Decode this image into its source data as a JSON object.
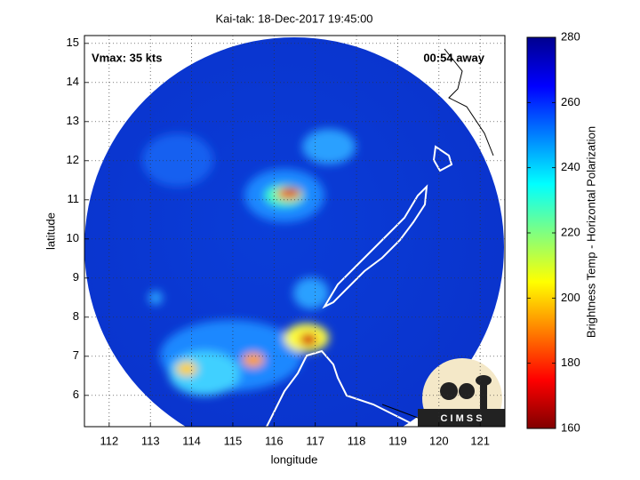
{
  "chart_data": {
    "type": "map",
    "title": "Kai-tak: 18-Dec-2017 19:45:00",
    "x_label": "longitude",
    "y_label": "latitude",
    "xlim": [
      111.4,
      121.6
    ],
    "ylim": [
      5.2,
      15.2
    ],
    "xticks": [
      112,
      113,
      114,
      115,
      116,
      117,
      118,
      119,
      120,
      121
    ],
    "yticks": [
      6,
      7,
      8,
      9,
      10,
      11,
      12,
      13,
      14,
      15
    ],
    "grid": true,
    "annotations": [
      "Vmax: 35 kts",
      "00:54 away"
    ],
    "logo": "C I M S S",
    "colorbar": {
      "label": "Brightness Temp - Horizontal Polarization",
      "clim": [
        160,
        280
      ],
      "ticks": [
        160,
        180,
        200,
        220,
        240,
        260,
        280
      ],
      "colormap": [
        "#800000",
        "#ff0000",
        "#ff8000",
        "#ffff00",
        "#80ff80",
        "#00ffff",
        "#0080ff",
        "#0000ff",
        "#00008f"
      ]
    }
  }
}
